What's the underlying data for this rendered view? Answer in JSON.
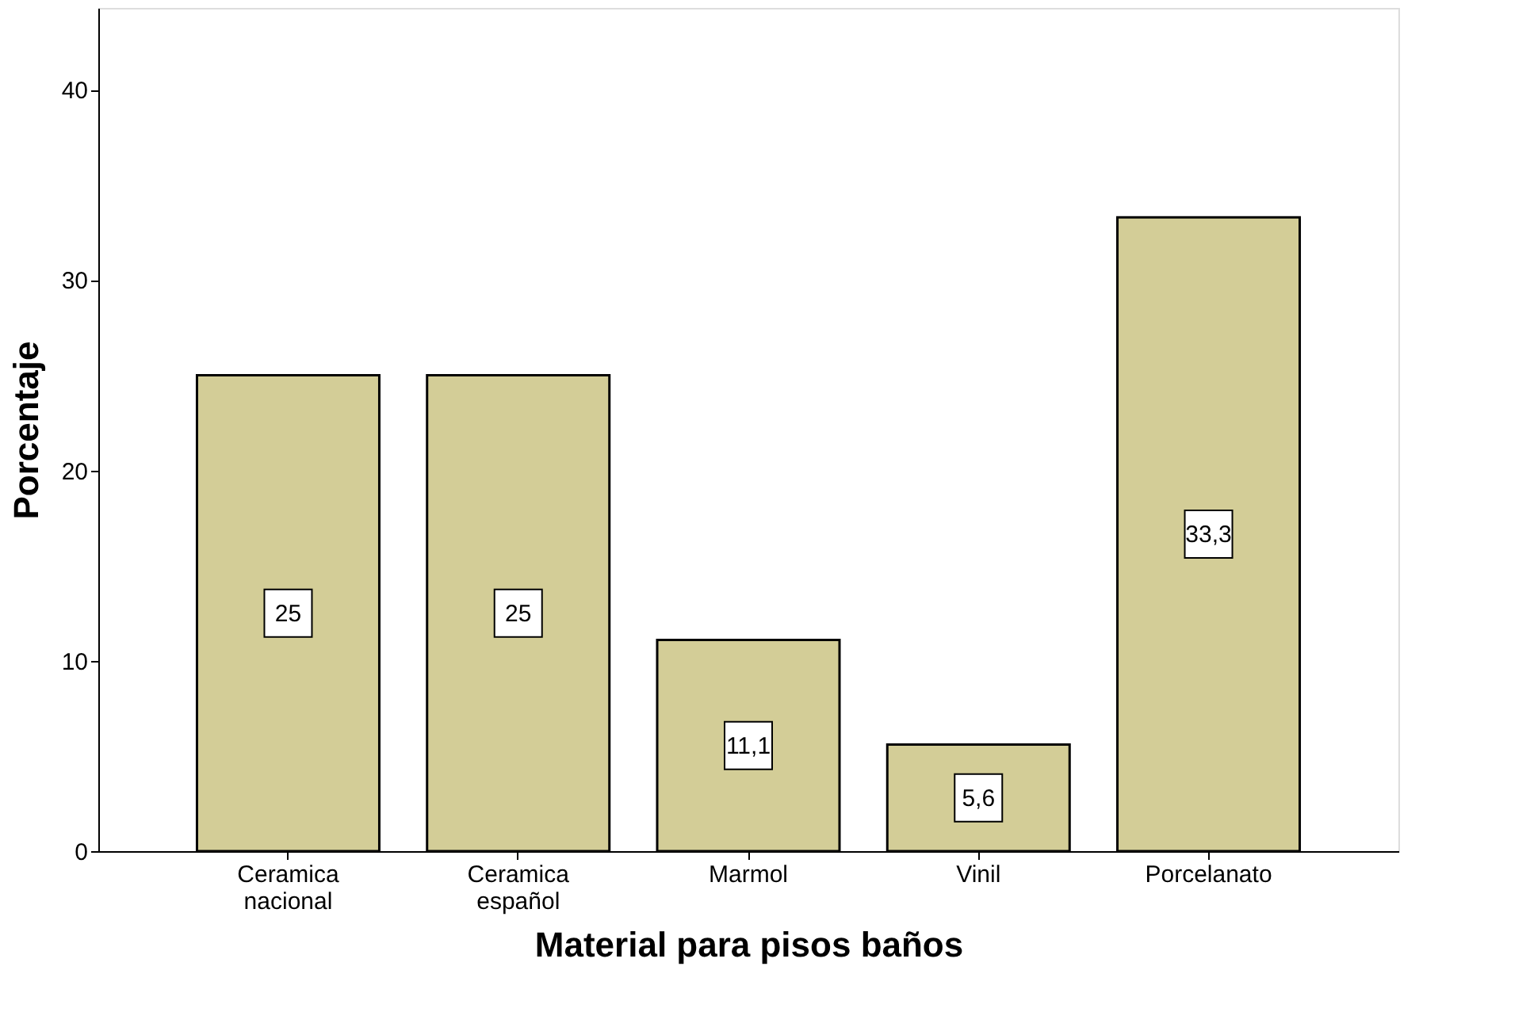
{
  "chart_data": {
    "type": "bar",
    "xlabel": "Material para pisos baños",
    "ylabel": "Porcentaje",
    "categories": [
      "Ceramica nacional",
      "Ceramica español",
      "Marmol",
      "Vinil",
      "Porcelanato"
    ],
    "values": [
      25,
      25,
      11.1,
      5.6,
      33.3
    ],
    "value_labels": [
      "25",
      "25",
      "11,1",
      "5,6",
      "33,3"
    ],
    "color": "#d3cd97",
    "ylim": [
      0,
      44.3
    ],
    "yticks": [
      0,
      10,
      20,
      30,
      40
    ],
    "grid": false
  }
}
